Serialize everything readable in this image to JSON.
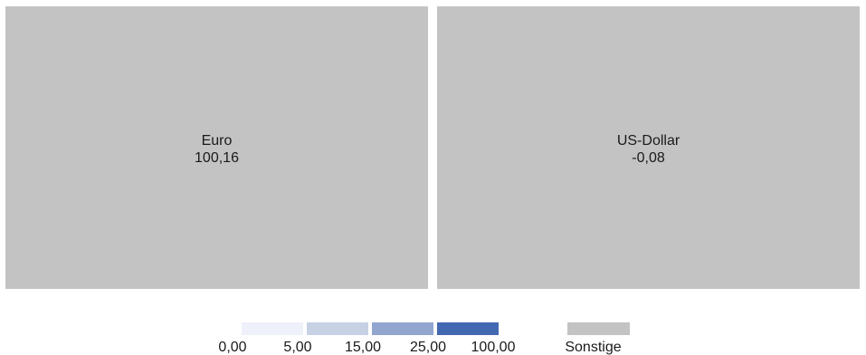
{
  "chart_data": {
    "type": "treemap",
    "tiles": [
      {
        "name": "Euro",
        "value_label": "100,16",
        "value": 100.16,
        "color": "#c3c3c3"
      },
      {
        "name": "US-Dollar",
        "value_label": "-0,08",
        "value": -0.08,
        "color": "#c3c3c3"
      }
    ],
    "legend": {
      "position": "bottom-center",
      "scale": [
        {
          "label": "0,00",
          "color": "#eef1fa"
        },
        {
          "label": "5,00",
          "color": "#c6d2e4"
        },
        {
          "label": "15,00",
          "color": "#91a5cf"
        },
        {
          "label": "25,00",
          "color": "#4268b2"
        },
        {
          "label": "100,00",
          "color": null
        }
      ],
      "other": {
        "label": "Sonstige",
        "color": "#c3c3c3"
      }
    }
  }
}
